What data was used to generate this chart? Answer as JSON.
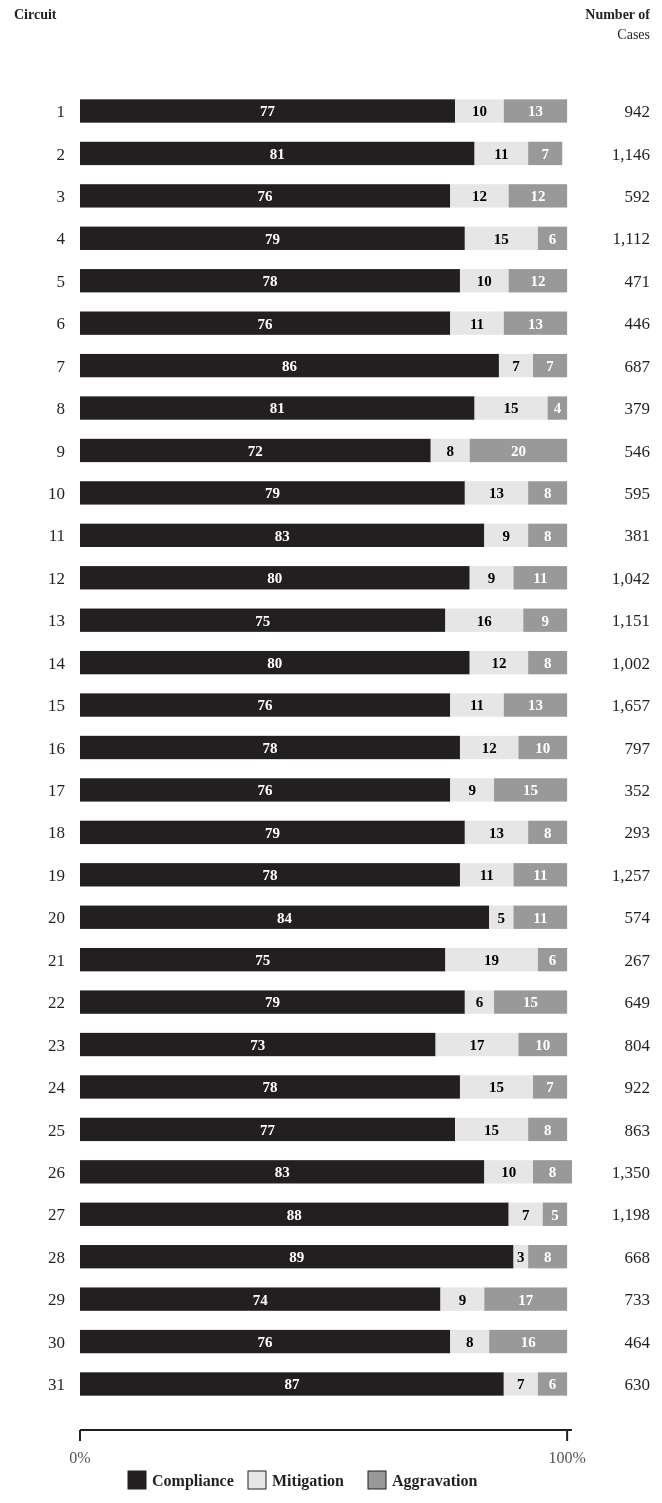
{
  "chart_data": {
    "type": "bar",
    "orientation": "horizontal",
    "stacked": true,
    "ylabel": "Circuit",
    "categories": [
      "1",
      "2",
      "3",
      "4",
      "5",
      "6",
      "7",
      "8",
      "9",
      "10",
      "11",
      "12",
      "13",
      "14",
      "15",
      "16",
      "17",
      "18",
      "19",
      "20",
      "21",
      "22",
      "23",
      "24",
      "25",
      "26",
      "27",
      "28",
      "29",
      "30",
      "31"
    ],
    "series": [
      {
        "name": "Compliance",
        "color": "#231f20",
        "values": [
          77,
          81,
          76,
          79,
          78,
          76,
          86,
          81,
          72,
          79,
          83,
          80,
          75,
          80,
          76,
          78,
          76,
          79,
          78,
          84,
          75,
          79,
          73,
          78,
          77,
          83,
          88,
          89,
          74,
          76,
          87
        ]
      },
      {
        "name": "Mitigation",
        "color": "#e6e6e6",
        "values": [
          10,
          11,
          12,
          15,
          10,
          11,
          7,
          15,
          8,
          13,
          9,
          9,
          16,
          12,
          11,
          12,
          9,
          13,
          11,
          5,
          19,
          6,
          17,
          15,
          15,
          10,
          7,
          3,
          9,
          8,
          7
        ]
      },
      {
        "name": "Aggravation",
        "color": "#999999",
        "values": [
          13,
          7,
          12,
          6,
          12,
          13,
          7,
          4,
          20,
          8,
          8,
          11,
          9,
          8,
          13,
          10,
          15,
          8,
          11,
          11,
          6,
          15,
          10,
          7,
          8,
          8,
          5,
          8,
          17,
          16,
          6
        ]
      }
    ],
    "xlim": [
      0,
      101
    ],
    "xticks": [
      {
        "value": 0,
        "label": "0%"
      },
      {
        "value": 100,
        "label": "100%"
      }
    ],
    "data_labels": true,
    "legend": "bottom",
    "annotations": [
      "Number of Cases",
      "942",
      "1,146",
      "592",
      "1,112",
      "471",
      "446",
      "687",
      "379",
      "546",
      "595",
      "381",
      "1,042",
      "1,151",
      "1,002",
      "1,657",
      "797",
      "352",
      "293",
      "1,257",
      "574",
      "267",
      "649",
      "804",
      "922",
      "863",
      "1,350",
      "1,198",
      "668",
      "733",
      "464",
      "630"
    ]
  }
}
